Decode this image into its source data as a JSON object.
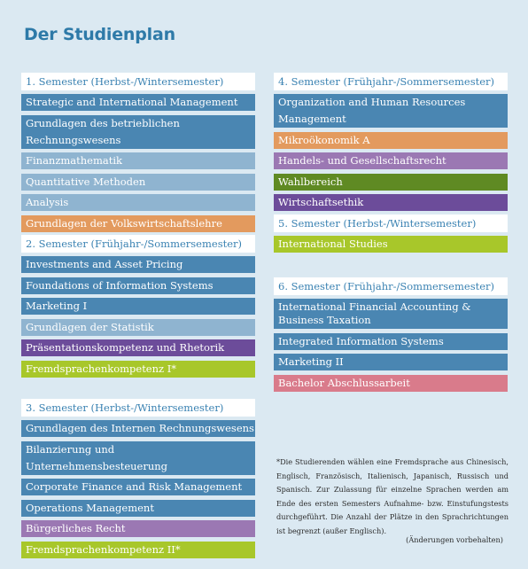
{
  "title": "Der Studienplan",
  "left_column": [
    {
      "header": "1. Semester (Herbst-/Wintersemester)",
      "items": [
        {
          "label": "Strategic and International Management",
          "color": "#4a86b2"
        },
        {
          "label": "Grundlagen des betrieblichen Rechnungswesens",
          "color": "#4a86b2"
        },
        {
          "label": "Finanzmathematik",
          "color": "#8fb4d0"
        },
        {
          "label": "Quantitative Methoden",
          "color": "#8fb4d0"
        },
        {
          "label": "Analysis",
          "color": "#8fb4d0"
        },
        {
          "label": "Grundlagen der Volkswirtschaftslehre",
          "color": "#e39a5e"
        }
      ]
    },
    {
      "header": "2. Semester (Frühjahr-/Sommersemester)",
      "items": [
        {
          "label": "Investments and Asset Pricing",
          "color": "#4a86b2"
        },
        {
          "label": "Foundations of Information Systems",
          "color": "#4a86b2"
        },
        {
          "label": "Marketing I",
          "color": "#4a86b2"
        },
        {
          "label": "Grundlagen der Statistik",
          "color": "#8fb4d0"
        },
        {
          "label": "Präsentationskompetenz und Rhetorik",
          "color": "#6c4c9a"
        },
        {
          "label": "Fremdsprachenkompetenz I*",
          "color": "#a8c72a"
        }
      ]
    },
    {
      "header": "3. Semester (Herbst-/Wintersemester)",
      "items": [
        {
          "label": "Grundlagen des Internen Rechnungswesens",
          "color": "#4a86b2"
        },
        {
          "label": "Bilanzierung und Unternehmensbesteuerung",
          "color": "#4a86b2"
        },
        {
          "label": "Corporate Finance and Risk Management",
          "color": "#4a86b2"
        },
        {
          "label": "Operations Management",
          "color": "#4a86b2"
        },
        {
          "label": "Bürgerliches Recht",
          "color": "#9b78b3"
        },
        {
          "label": "Fremdsprachenkompetenz II*",
          "color": "#a8c72a"
        }
      ]
    }
  ],
  "right_column": [
    {
      "header": "4. Semester (Frühjahr-/Sommersemester)",
      "items": [
        {
          "label": "Organization and Human Resources Management",
          "color": "#4a86b2"
        },
        {
          "label": "Mikroökonomik A",
          "color": "#e39a5e"
        },
        {
          "label": "Handels- und Gesellschaftsrecht",
          "color": "#9b78b3"
        },
        {
          "label": "Wahlbereich",
          "color": "#5f8a23"
        },
        {
          "label": "Wirtschaftsethik",
          "color": "#6c4c9a"
        }
      ]
    },
    {
      "header": "5. Semester (Herbst-/Wintersemester)",
      "items": [
        {
          "label": "International Studies",
          "color": "#a8c72a"
        }
      ]
    },
    {
      "header": "6. Semester (Frühjahr-/Sommersemester)",
      "items": [
        {
          "label": "International Financial Accounting &\nBusiness Taxation",
          "color": "#4a86b2"
        },
        {
          "label": "Integrated Information Systems",
          "color": "#4a86b2"
        },
        {
          "label": "Marketing II",
          "color": "#4a86b2"
        },
        {
          "label": "Bachelor Abschlussarbeit",
          "color": "#d97b8b"
        }
      ]
    }
  ],
  "footnote": "*Die Studierenden wählen eine Fremdsprache aus Chinesisch, Englisch, Französisch, Italienisch, Japanisch, Russisch und Spanisch. Zur Zulassung für einzelne Sprachen werden am Ende des ersten Semesters Aufnahme- bzw. Einstufungstests durchgeführt. Die Anzahl der Plätze in den Sprachrichtungen ist begrenzt (außer Englisch).",
  "remark": "(Änderungen vorbehalten)"
}
